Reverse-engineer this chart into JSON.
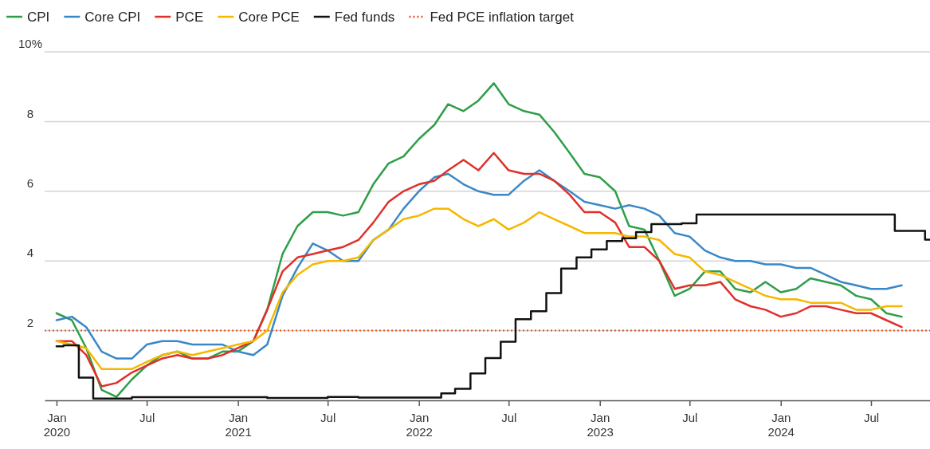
{
  "chart_data": {
    "type": "line",
    "x": [
      "2020-01",
      "2020-02",
      "2020-03",
      "2020-04",
      "2020-05",
      "2020-06",
      "2020-07",
      "2020-08",
      "2020-09",
      "2020-10",
      "2020-11",
      "2020-12",
      "2021-01",
      "2021-02",
      "2021-03",
      "2021-04",
      "2021-05",
      "2021-06",
      "2021-07",
      "2021-08",
      "2021-09",
      "2021-10",
      "2021-11",
      "2021-12",
      "2022-01",
      "2022-02",
      "2022-03",
      "2022-04",
      "2022-05",
      "2022-06",
      "2022-07",
      "2022-08",
      "2022-09",
      "2022-10",
      "2022-11",
      "2022-12",
      "2023-01",
      "2023-02",
      "2023-03",
      "2023-04",
      "2023-05",
      "2023-06",
      "2023-07",
      "2023-08",
      "2023-09",
      "2023-10",
      "2023-11",
      "2023-12",
      "2024-01",
      "2024-02",
      "2024-03",
      "2024-04",
      "2024-05",
      "2024-06",
      "2024-07",
      "2024-08",
      "2024-09"
    ],
    "series": [
      {
        "name": "CPI",
        "color": "#2e9e48",
        "values": [
          2.5,
          2.3,
          1.5,
          0.3,
          0.1,
          0.6,
          1.0,
          1.3,
          1.4,
          1.2,
          1.2,
          1.4,
          1.4,
          1.7,
          2.6,
          4.2,
          5.0,
          5.4,
          5.4,
          5.3,
          5.4,
          6.2,
          6.8,
          7.0,
          7.5,
          7.9,
          8.5,
          8.3,
          8.6,
          9.1,
          8.5,
          8.3,
          8.2,
          7.7,
          7.1,
          6.5,
          6.4,
          6.0,
          5.0,
          4.9,
          4.0,
          3.0,
          3.2,
          3.7,
          3.7,
          3.2,
          3.1,
          3.4,
          3.1,
          3.2,
          3.5,
          3.4,
          3.3,
          3.0,
          2.9,
          2.5,
          2.4
        ]
      },
      {
        "name": "Core CPI",
        "color": "#3a87c8",
        "values": [
          2.3,
          2.4,
          2.1,
          1.4,
          1.2,
          1.2,
          1.6,
          1.7,
          1.7,
          1.6,
          1.6,
          1.6,
          1.4,
          1.3,
          1.6,
          3.0,
          3.8,
          4.5,
          4.3,
          4.0,
          4.0,
          4.6,
          4.9,
          5.5,
          6.0,
          6.4,
          6.5,
          6.2,
          6.0,
          5.9,
          5.9,
          6.3,
          6.6,
          6.3,
          6.0,
          5.7,
          5.6,
          5.5,
          5.6,
          5.5,
          5.3,
          4.8,
          4.7,
          4.3,
          4.1,
          4.0,
          4.0,
          3.9,
          3.9,
          3.8,
          3.8,
          3.6,
          3.4,
          3.3,
          3.2,
          3.2,
          3.3
        ]
      },
      {
        "name": "PCE",
        "color": "#e0302a",
        "values": [
          1.7,
          1.7,
          1.3,
          0.4,
          0.5,
          0.8,
          1.0,
          1.2,
          1.3,
          1.2,
          1.2,
          1.3,
          1.5,
          1.7,
          2.6,
          3.7,
          4.1,
          4.2,
          4.3,
          4.4,
          4.6,
          5.1,
          5.7,
          6.0,
          6.2,
          6.3,
          6.6,
          6.9,
          6.6,
          7.1,
          6.6,
          6.5,
          6.5,
          6.3,
          5.9,
          5.4,
          5.4,
          5.1,
          4.4,
          4.4,
          4.0,
          3.2,
          3.3,
          3.3,
          3.4,
          2.9,
          2.7,
          2.6,
          2.4,
          2.5,
          2.7,
          2.7,
          2.6,
          2.5,
          2.5,
          2.3,
          2.1
        ]
      },
      {
        "name": "Core PCE",
        "color": "#f5b800",
        "values": [
          1.7,
          1.6,
          1.5,
          0.9,
          0.9,
          0.9,
          1.1,
          1.3,
          1.4,
          1.3,
          1.4,
          1.5,
          1.6,
          1.7,
          2.0,
          3.1,
          3.6,
          3.9,
          4.0,
          4.0,
          4.1,
          4.6,
          4.9,
          5.2,
          5.3,
          5.5,
          5.5,
          5.2,
          5.0,
          5.2,
          4.9,
          5.1,
          5.4,
          5.2,
          5.0,
          4.8,
          4.8,
          4.8,
          4.7,
          4.7,
          4.6,
          4.2,
          4.1,
          3.7,
          3.6,
          3.4,
          3.2,
          3.0,
          2.9,
          2.9,
          2.8,
          2.8,
          2.8,
          2.6,
          2.6,
          2.7,
          2.7
        ]
      },
      {
        "name": "Fed funds",
        "type": "step",
        "color": "#111111",
        "x": [
          "2020-01-01",
          "2020-01-15",
          "2020-02-15",
          "2020-03-15",
          "2020-06-01",
          "2021-03-01",
          "2021-07-01",
          "2021-09-01",
          "2022-02-15",
          "2022-03-15",
          "2022-04-15",
          "2022-05-15",
          "2022-06-15",
          "2022-07-15",
          "2022-08-15",
          "2022-09-15",
          "2022-10-15",
          "2022-11-15",
          "2022-12-15",
          "2023-01-15",
          "2023-02-15",
          "2023-03-15",
          "2023-04-15",
          "2023-06-15",
          "2023-07-15",
          "2024-08-18",
          "2024-10-18",
          "2024-10-28"
        ],
        "values": [
          1.55,
          1.58,
          0.65,
          0.05,
          0.09,
          0.07,
          0.1,
          0.08,
          0.2,
          0.33,
          0.77,
          1.21,
          1.68,
          2.33,
          2.56,
          3.08,
          3.78,
          4.1,
          4.33,
          4.57,
          4.65,
          4.83,
          5.06,
          5.08,
          5.33,
          4.86,
          4.61,
          4.61
        ]
      }
    ],
    "ref_lines": [
      {
        "axis": "y",
        "value": 2,
        "label": "Fed PCE inflation target",
        "color": "#e8541e",
        "line_style": "dotted"
      }
    ],
    "xlim": [
      "2019-12-08",
      "2024-10-28"
    ],
    "xticks": [
      {
        "value": "2020-01",
        "label": "Jan 2020"
      },
      {
        "value": "2020-07",
        "label": "Jul"
      },
      {
        "value": "2021-01",
        "label": "Jan 2021"
      },
      {
        "value": "2021-07",
        "label": "Jul"
      },
      {
        "value": "2022-01",
        "label": "Jan 2022"
      },
      {
        "value": "2022-07",
        "label": "Jul"
      },
      {
        "value": "2023-01",
        "label": "Jan 2023"
      },
      {
        "value": "2023-07",
        "label": "Jul"
      },
      {
        "value": "2024-01",
        "label": "Jan 2024"
      },
      {
        "value": "2024-07",
        "label": "Jul"
      }
    ],
    "ylim": [
      0,
      10
    ],
    "yticks": [
      2,
      4,
      6,
      8,
      {
        "value": 10,
        "label": "10%"
      }
    ],
    "grid": "y",
    "legend": "top left",
    "line_style": "solid",
    "marker": "none"
  }
}
